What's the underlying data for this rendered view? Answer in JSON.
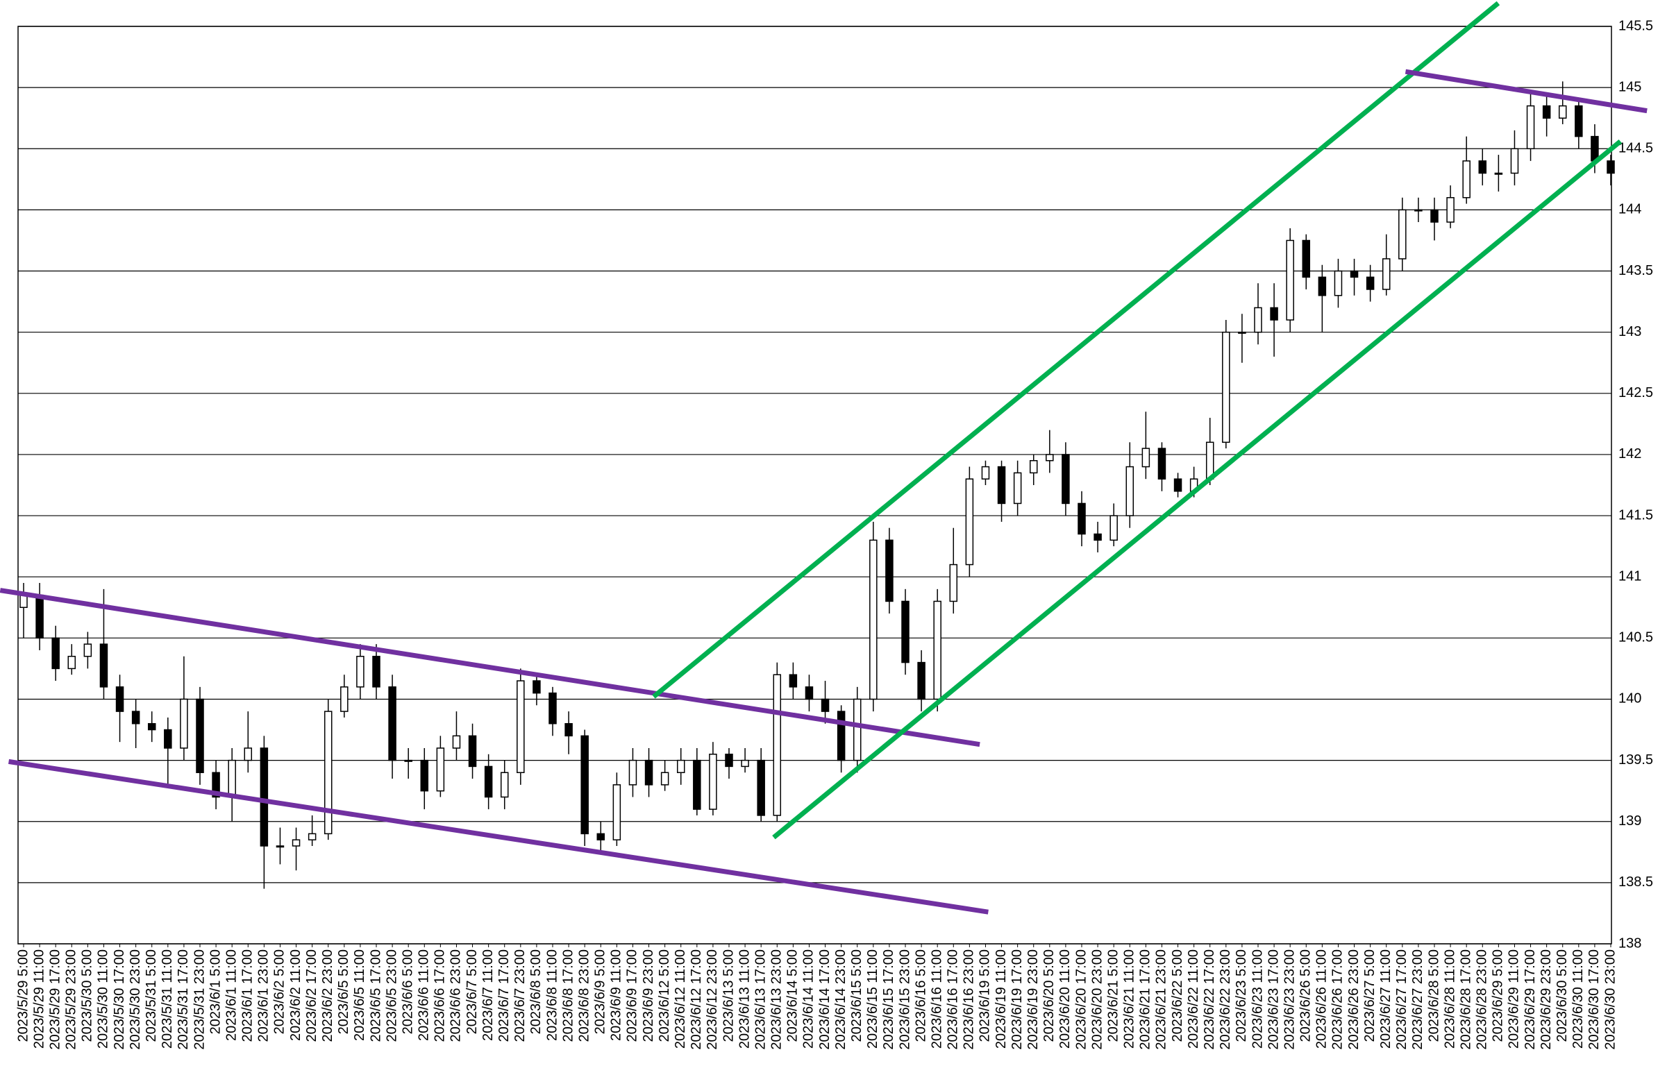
{
  "chart_data": {
    "type": "candlestick",
    "categories": [
      "2023/5/29 5:00",
      "2023/5/29 11:00",
      "2023/5/29 17:00",
      "2023/5/29 23:00",
      "2023/5/30 5:00",
      "2023/5/30 11:00",
      "2023/5/30 17:00",
      "2023/5/30 23:00",
      "2023/5/31 5:00",
      "2023/5/31 11:00",
      "2023/5/31 17:00",
      "2023/5/31 23:00",
      "2023/6/1 5:00",
      "2023/6/1 11:00",
      "2023/6/1 17:00",
      "2023/6/1 23:00",
      "2023/6/2 5:00",
      "2023/6/2 11:00",
      "2023/6/2 17:00",
      "2023/6/2 23:00",
      "2023/6/5 5:00",
      "2023/6/5 11:00",
      "2023/6/5 17:00",
      "2023/6/5 23:00",
      "2023/6/6 5:00",
      "2023/6/6 11:00",
      "2023/6/6 17:00",
      "2023/6/6 23:00",
      "2023/6/7 5:00",
      "2023/6/7 11:00",
      "2023/6/7 17:00",
      "2023/6/7 23:00",
      "2023/6/8 5:00",
      "2023/6/8 11:00",
      "2023/6/8 17:00",
      "2023/6/8 23:00",
      "2023/6/9 5:00",
      "2023/6/9 11:00",
      "2023/6/9 17:00",
      "2023/6/9 23:00",
      "2023/6/12 5:00",
      "2023/6/12 11:00",
      "2023/6/12 17:00",
      "2023/6/12 23:00",
      "2023/6/13 5:00",
      "2023/6/13 11:00",
      "2023/6/13 17:00",
      "2023/6/13 23:00",
      "2023/6/14 5:00",
      "2023/6/14 11:00",
      "2023/6/14 17:00",
      "2023/6/14 23:00",
      "2023/6/15 5:00",
      "2023/6/15 11:00",
      "2023/6/15 17:00",
      "2023/6/15 23:00",
      "2023/6/16 5:00",
      "2023/6/16 11:00",
      "2023/6/16 17:00",
      "2023/6/16 23:00",
      "2023/6/19 5:00",
      "2023/6/19 11:00",
      "2023/6/19 17:00",
      "2023/6/19 23:00",
      "2023/6/20 5:00",
      "2023/6/20 11:00",
      "2023/6/20 17:00",
      "2023/6/20 23:00",
      "2023/6/21 5:00",
      "2023/6/21 11:00",
      "2023/6/21 17:00",
      "2023/6/21 23:00",
      "2023/6/22 5:00",
      "2023/6/22 11:00",
      "2023/6/22 17:00",
      "2023/6/22 23:00",
      "2023/6/23 5:00",
      "2023/6/23 11:00",
      "2023/6/23 17:00",
      "2023/6/23 23:00",
      "2023/6/26 5:00",
      "2023/6/26 11:00",
      "2023/6/26 17:00",
      "2023/6/26 23:00",
      "2023/6/27 5:00",
      "2023/6/27 11:00",
      "2023/6/27 17:00",
      "2023/6/27 23:00",
      "2023/6/28 5:00",
      "2023/6/28 11:00",
      "2023/6/28 17:00",
      "2023/6/28 23:00",
      "2023/6/29 5:00",
      "2023/6/29 11:00",
      "2023/6/29 17:00",
      "2023/6/29 23:00",
      "2023/6/30 5:00",
      "2023/6/30 11:00",
      "2023/6/30 17:00",
      "2023/6/30 23:00"
    ],
    "series": [
      {
        "color": "#000000",
        "open": [
          140.75,
          140.85,
          140.5,
          140.25,
          140.35,
          140.45,
          140.1,
          139.9,
          139.8,
          139.75,
          139.6,
          140.0,
          139.4,
          139.2,
          139.5,
          139.6,
          138.8,
          138.8,
          138.85,
          138.9,
          139.9,
          140.1,
          140.35,
          140.1,
          139.5,
          139.5,
          139.25,
          139.6,
          139.7,
          139.45,
          139.2,
          139.4,
          140.15,
          140.05,
          139.8,
          139.7,
          138.9,
          138.85,
          139.3,
          139.5,
          139.3,
          139.4,
          139.5,
          139.1,
          139.55,
          139.45,
          139.5,
          139.05,
          140.2,
          140.1,
          140.0,
          139.9,
          139.5,
          140.0,
          141.3,
          140.8,
          140.3,
          140.0,
          140.8,
          141.1,
          141.8,
          141.9,
          141.6,
          141.85,
          141.95,
          142.0,
          141.6,
          141.35,
          141.3,
          141.5,
          141.9,
          142.05,
          141.8,
          141.7,
          141.8,
          142.1,
          143.0,
          143.0,
          143.2,
          143.1,
          143.75,
          143.45,
          143.3,
          143.5,
          143.45,
          143.35,
          143.6,
          144.0,
          144.0,
          143.9,
          144.1,
          144.4,
          144.3,
          144.3,
          144.5,
          144.85,
          144.75,
          144.85,
          144.6,
          144.4
        ],
        "high": [
          140.95,
          140.95,
          140.6,
          140.45,
          140.55,
          140.9,
          140.2,
          140.0,
          139.9,
          139.85,
          140.35,
          140.1,
          139.5,
          139.6,
          139.9,
          139.7,
          138.95,
          138.95,
          139.05,
          140.0,
          140.2,
          140.45,
          140.45,
          140.2,
          139.6,
          139.6,
          139.7,
          139.9,
          139.8,
          139.55,
          139.5,
          140.25,
          140.2,
          140.1,
          139.9,
          139.75,
          139.0,
          139.4,
          139.6,
          139.6,
          139.5,
          139.6,
          139.6,
          139.65,
          139.6,
          139.6,
          139.6,
          140.3,
          140.3,
          140.2,
          140.15,
          139.95,
          140.1,
          141.45,
          141.4,
          140.9,
          140.4,
          140.9,
          141.4,
          141.9,
          141.95,
          141.95,
          141.95,
          142.0,
          142.2,
          142.1,
          141.7,
          141.45,
          141.6,
          142.1,
          142.35,
          142.1,
          141.85,
          141.9,
          142.3,
          143.1,
          143.15,
          143.4,
          143.4,
          143.85,
          143.8,
          143.55,
          143.6,
          143.6,
          143.55,
          143.8,
          144.1,
          144.1,
          144.1,
          144.2,
          144.6,
          144.5,
          144.45,
          144.65,
          144.95,
          144.95,
          145.05,
          144.9,
          144.7,
          144.45
        ],
        "low": [
          140.5,
          140.4,
          140.15,
          140.2,
          140.25,
          140.0,
          139.65,
          139.6,
          139.65,
          139.3,
          139.5,
          139.3,
          139.1,
          139.0,
          139.4,
          138.45,
          138.65,
          138.6,
          138.8,
          138.85,
          139.85,
          140.0,
          140.0,
          139.35,
          139.35,
          139.1,
          139.2,
          139.5,
          139.35,
          139.1,
          139.1,
          139.3,
          139.95,
          139.7,
          139.55,
          138.8,
          138.75,
          138.8,
          139.2,
          139.2,
          139.25,
          139.3,
          139.05,
          139.05,
          139.35,
          139.4,
          139.0,
          139.0,
          140.0,
          139.9,
          139.8,
          139.4,
          139.4,
          139.9,
          140.7,
          140.2,
          139.9,
          139.9,
          140.7,
          141.0,
          141.75,
          141.45,
          141.5,
          141.75,
          141.85,
          141.5,
          141.25,
          141.2,
          141.25,
          141.4,
          141.8,
          141.7,
          141.65,
          141.65,
          141.75,
          142.05,
          142.75,
          142.9,
          142.8,
          143.0,
          143.35,
          143.0,
          143.2,
          143.3,
          143.25,
          143.3,
          143.5,
          143.9,
          143.75,
          143.85,
          144.05,
          144.2,
          144.15,
          144.2,
          144.4,
          144.6,
          144.7,
          144.5,
          144.3,
          144.2
        ],
        "close": [
          140.85,
          140.5,
          140.25,
          140.35,
          140.45,
          140.1,
          139.9,
          139.8,
          139.75,
          139.6,
          140.0,
          139.4,
          139.2,
          139.5,
          139.6,
          138.8,
          138.8,
          138.85,
          138.9,
          139.9,
          140.1,
          140.35,
          140.1,
          139.5,
          139.5,
          139.25,
          139.6,
          139.7,
          139.45,
          139.2,
          139.4,
          140.15,
          140.05,
          139.8,
          139.7,
          138.9,
          138.85,
          139.3,
          139.5,
          139.3,
          139.4,
          139.5,
          139.1,
          139.55,
          139.45,
          139.5,
          139.05,
          140.2,
          140.1,
          140.0,
          139.9,
          139.5,
          140.0,
          141.3,
          140.8,
          140.3,
          140.0,
          140.8,
          141.1,
          141.8,
          141.9,
          141.6,
          141.85,
          141.95,
          142.0,
          141.6,
          141.35,
          141.3,
          141.5,
          141.9,
          142.05,
          141.8,
          141.7,
          141.8,
          142.1,
          143.0,
          143.0,
          143.2,
          143.1,
          143.75,
          143.45,
          143.3,
          143.5,
          143.45,
          143.35,
          143.6,
          144.0,
          144.0,
          143.9,
          144.1,
          144.4,
          144.3,
          144.3,
          144.5,
          144.85,
          144.75,
          144.85,
          144.6,
          144.4,
          144.3
        ]
      }
    ],
    "trend_lines": [
      {
        "color": "#7030a0",
        "x": [
          -1.46,
          59.64
        ],
        "y": [
          140.89,
          139.63
        ]
      },
      {
        "color": "#7030a0",
        "x": [
          -0.93,
          60.17
        ],
        "y": [
          139.49,
          138.26
        ]
      },
      {
        "color": "#00b050",
        "x": [
          39.3,
          91.98
        ],
        "y": [
          140.02,
          145.69
        ]
      },
      {
        "color": "#00b050",
        "x": [
          46.79,
          99.6
        ],
        "y": [
          138.87,
          144.56
        ]
      },
      {
        "color": "#7030a0",
        "x": [
          86.2,
          101.26
        ],
        "y": [
          145.13,
          144.81
        ]
      }
    ],
    "ylim": [
      138,
      145.5
    ],
    "yticks": [
      138,
      138.5,
      139,
      139.5,
      140,
      140.5,
      141,
      141.5,
      142,
      142.5,
      143,
      143.5,
      144,
      144.5,
      145,
      145.5
    ],
    "grid": true
  }
}
